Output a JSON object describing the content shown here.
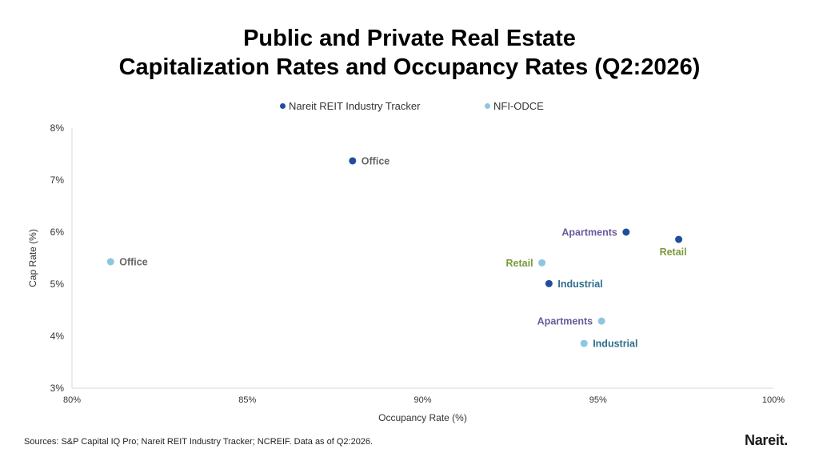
{
  "chart_data": {
    "type": "scatter",
    "title": [
      "Public and Private Real Estate",
      "Capitalization Rates and Occupancy Rates (Q2:2026)"
    ],
    "xlabel": "Occupancy Rate (%)",
    "ylabel": "Cap Rate (%)",
    "xlim": [
      80,
      100
    ],
    "ylim": [
      3,
      8
    ],
    "xticks": [
      {
        "value": 80,
        "label": "80%"
      },
      {
        "value": 85,
        "label": "85%"
      },
      {
        "value": 90,
        "label": "90%"
      },
      {
        "value": 95,
        "label": "95%"
      },
      {
        "value": 100,
        "label": "100%"
      }
    ],
    "yticks": [
      {
        "value": 3,
        "label": "3%"
      },
      {
        "value": 4,
        "label": "4%"
      },
      {
        "value": 5,
        "label": "5%"
      },
      {
        "value": 6,
        "label": "6%"
      },
      {
        "value": 7,
        "label": "7%"
      },
      {
        "value": 8,
        "label": "8%"
      }
    ],
    "grid": false,
    "legend_position": "top",
    "series": [
      {
        "name": "Nareit REIT Industry Tracker",
        "color": "#1f4e9c",
        "points": [
          {
            "x": 88.0,
            "y": 7.37,
            "label": "Office",
            "label_color": "#666666",
            "label_side": "right"
          },
          {
            "x": 95.8,
            "y": 6.0,
            "label": "Apartments",
            "label_color": "#6a5a9c",
            "label_side": "left"
          },
          {
            "x": 97.3,
            "y": 5.86,
            "label": "Retail",
            "label_color": "#7a9a3c",
            "label_side": "below"
          },
          {
            "x": 93.6,
            "y": 5.01,
            "label": "Industrial",
            "label_color": "#2e6e8c",
            "label_side": "right"
          }
        ]
      },
      {
        "name": "NFI-ODCE",
        "color": "#8ec6e0",
        "points": [
          {
            "x": 81.1,
            "y": 5.43,
            "label": "Office",
            "label_color": "#666666",
            "label_side": "right"
          },
          {
            "x": 93.4,
            "y": 5.41,
            "label": "Retail",
            "label_color": "#7a9a3c",
            "label_side": "left"
          },
          {
            "x": 95.1,
            "y": 4.29,
            "label": "Apartments",
            "label_color": "#6a5a9c",
            "label_side": "left"
          },
          {
            "x": 94.6,
            "y": 3.86,
            "label": "Industrial",
            "label_color": "#2e6e8c",
            "label_side": "right"
          }
        ]
      }
    ]
  },
  "footer": {
    "source": "Sources: S&P Capital IQ Pro; Nareit REIT Industry Tracker; NCREIF. Data as of Q2:2026.",
    "logo": "Nareit."
  }
}
